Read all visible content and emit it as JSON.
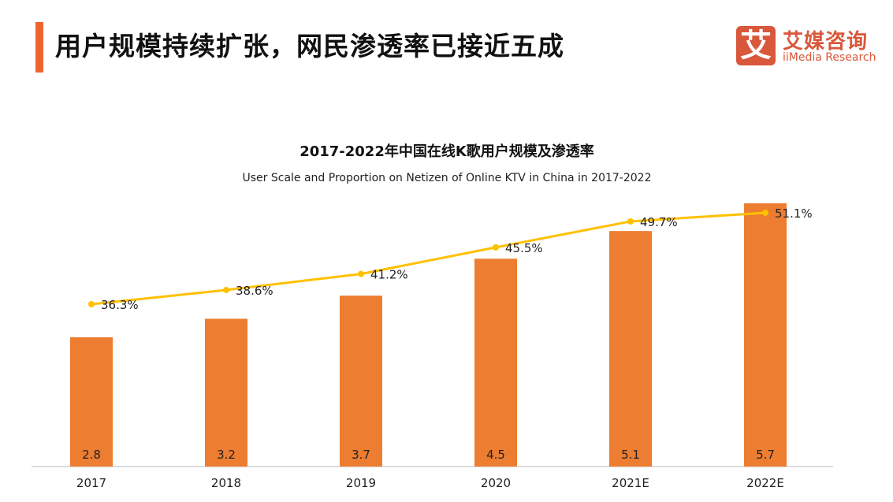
{
  "header": {
    "title": "用户规模持续扩张，网民渗透率已接近五成"
  },
  "logo": {
    "mark": "艾",
    "name_cn": "艾媒咨询",
    "name_en": "iiMedia Research"
  },
  "chart_data": {
    "type": "bar+line",
    "title": "2017-2022年中国在线K歌用户规模及渗透率",
    "subtitle": "User Scale and Proportion on Netizen of Online KTV in China in 2017-2022",
    "categories": [
      "2017",
      "2018",
      "2019",
      "2020",
      "2021E",
      "2022E"
    ],
    "series": [
      {
        "type": "bar",
        "values": [
          2.8,
          3.2,
          3.7,
          4.5,
          5.1,
          5.7
        ],
        "labels": [
          "2.8",
          "3.2",
          "3.7",
          "4.5",
          "5.1",
          "5.7"
        ],
        "color": "#ED7D31"
      },
      {
        "type": "line",
        "values": [
          36.3,
          38.6,
          41.2,
          45.5,
          49.7,
          51.1
        ],
        "labels": [
          "36.3%",
          "38.6%",
          "41.2%",
          "45.5%",
          "49.7%",
          "51.1%"
        ],
        "color": "#FFC000"
      }
    ],
    "grid": false,
    "legend": "none"
  }
}
